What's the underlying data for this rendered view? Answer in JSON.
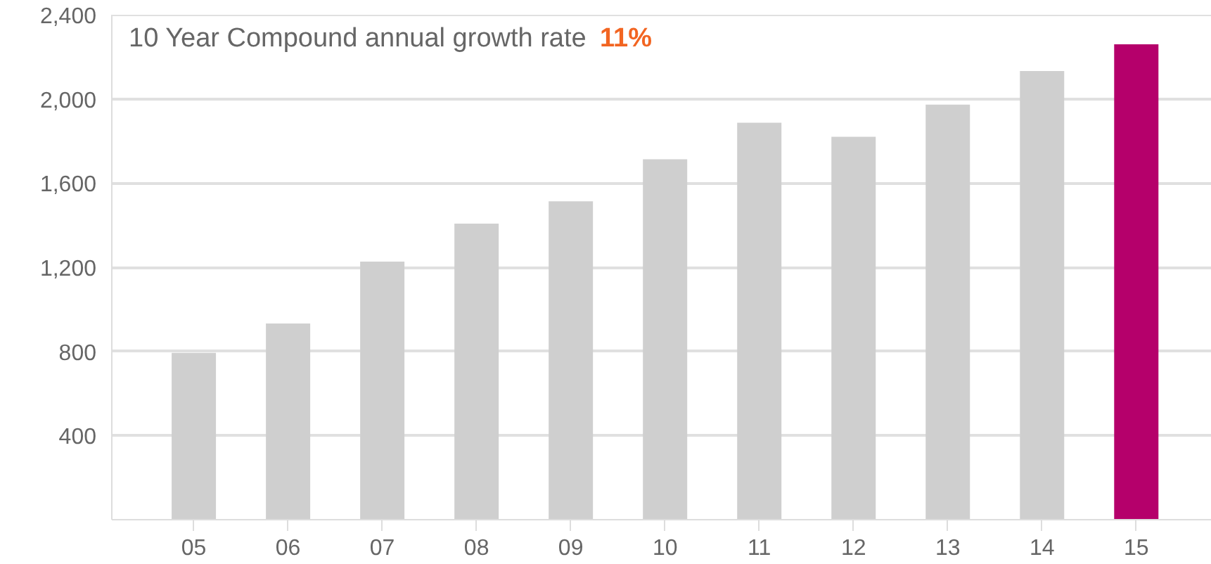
{
  "chart_data": {
    "type": "bar",
    "title": "10 Year Compound annual growth rate",
    "annotations": [
      "11%"
    ],
    "categories": [
      "05",
      "06",
      "07",
      "08",
      "09",
      "10",
      "11",
      "12",
      "13",
      "14",
      "15"
    ],
    "values": [
      793,
      933,
      1227,
      1407,
      1513,
      1713,
      1887,
      1820,
      1973,
      2133,
      2260
    ],
    "colors": [
      "#cfcfcf",
      "#cfcfcf",
      "#cfcfcf",
      "#cfcfcf",
      "#cfcfcf",
      "#cfcfcf",
      "#cfcfcf",
      "#cfcfcf",
      "#cfcfcf",
      "#cfcfcf",
      "#b5006b"
    ],
    "ylim": [
      0,
      2400
    ],
    "yticks": [
      {
        "value": 0,
        "label": null
      },
      {
        "value": 400,
        "label": "400"
      },
      {
        "value": 800,
        "label": "800"
      },
      {
        "value": 1200,
        "label": "1,200"
      },
      {
        "value": 1600,
        "label": "1,600"
      },
      {
        "value": 2000,
        "label": "2,000"
      },
      {
        "value": 2400,
        "label": "2,400"
      }
    ],
    "grid": "y"
  }
}
